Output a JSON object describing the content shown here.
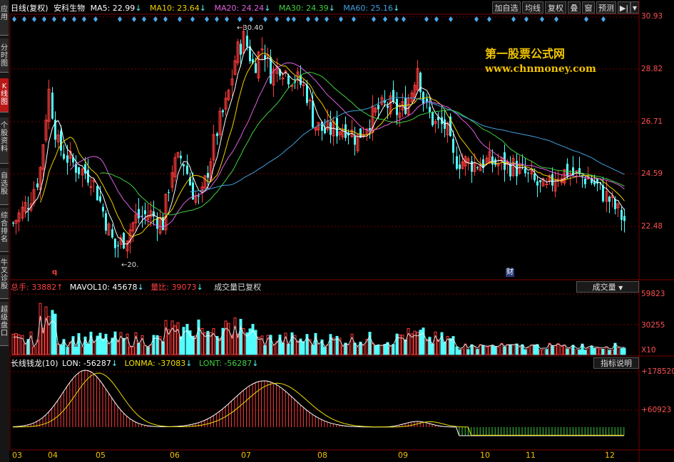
{
  "sidebar": {
    "items": [
      {
        "label": "应用",
        "active": false
      },
      {
        "label": "分时图",
        "active": false
      },
      {
        "label": "K线图",
        "active": true
      },
      {
        "label": "个股资料",
        "active": false
      },
      {
        "label": "自选股",
        "active": false
      },
      {
        "label": "综合排名",
        "active": false
      },
      {
        "label": "牛叉诊股",
        "active": false
      },
      {
        "label": "超级盘口",
        "active": false
      }
    ]
  },
  "header": {
    "period": "日线(复权)",
    "stock_name": "安科生物",
    "ma": [
      {
        "label": "MA5: 22.99",
        "arrow": "↓",
        "color": "#ffffff"
      },
      {
        "label": "MA10: 23.64",
        "arrow": "↓",
        "color": "#f0d000"
      },
      {
        "label": "MA20: 24.24",
        "arrow": "↓",
        "color": "#e060e0"
      },
      {
        "label": "MA30: 24.39",
        "arrow": "↓",
        "color": "#40d040"
      },
      {
        "label": "MA60: 25.16",
        "arrow": "↓",
        "color": "#40a0e0"
      }
    ]
  },
  "toolbar": {
    "add_watchlist": "加自选",
    "ma_button": "均线",
    "restore_button": "复权",
    "overlay_button": "叠",
    "window_button": "窗",
    "forecast_button": "预测",
    "nav_button": "▶|"
  },
  "watermark": {
    "title": "第一股票公式网",
    "url": "www.chnmoney.com"
  },
  "price_axis": {
    "labels": [
      "30.93",
      "28.82",
      "26.71",
      "24.59",
      "22.48"
    ]
  },
  "annotations": {
    "high": "30.40",
    "low": "20.",
    "q_marker": "q",
    "cai_marker": "财"
  },
  "volume_panel": {
    "total_label": "总手: 33882",
    "total_arrow": "↑",
    "mavol_label": "MAVOL10: 45678",
    "mavol_arrow": "↓",
    "ratio_label": "量比: 39073",
    "ratio_arrow": "↓",
    "status_text": "成交量已复权",
    "dropdown": "成交量",
    "axis": [
      "59823",
      "30255"
    ],
    "unit": "X10"
  },
  "indicator_panel": {
    "name": "长线钱龙(10)",
    "lon_label": "LON: -56287",
    "lon_arrow": "↓",
    "lonma_label": "LONMA: -37083",
    "lonma_arrow": "↓",
    "lont_label": "LONT: -56287",
    "lont_arrow": "↓",
    "help_button": "指标说明",
    "axis": [
      "+178520",
      "+60923"
    ]
  },
  "months": [
    "03",
    "04",
    "05",
    "06",
    "07",
    "08",
    "09",
    "10",
    "11",
    "12"
  ],
  "colors": {
    "up": "#ff3c3c",
    "down": "#54ffff",
    "grid": "#7a0000",
    "axis_text": "#ff5050"
  }
}
